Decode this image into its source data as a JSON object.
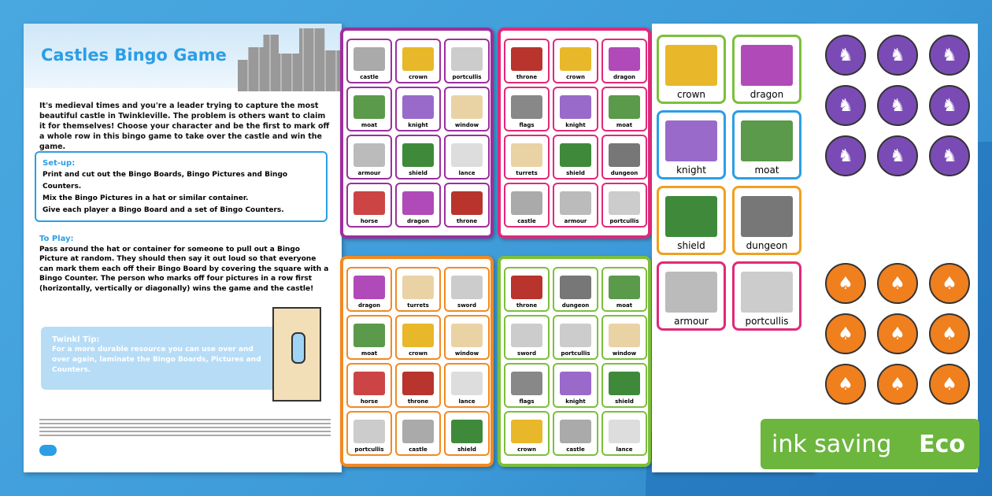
{
  "sheet": {
    "title": "Castles Bingo Game",
    "intro": "It's medieval times and you're a leader trying to capture the most beautiful castle in Twinkleville. The problem is others want to claim it for themselves! Choose your character and be the first to mark off a whole row in this bingo game to take over the castle and win the game.",
    "setup_heading": "Set-up:",
    "setup": [
      "Print and cut out the Bingo Boards, Bingo Pictures and Bingo Counters.",
      "Mix the Bingo Pictures in a hat or similar container.",
      "Give each player a Bingo Board and a set of Bingo Counters."
    ],
    "play_heading": "To Play:",
    "play": "Pass around the hat or container for someone to pull out a Bingo Picture at random. They should then say it out loud so that everyone can mark them each off their Bingo Board by covering the square with a Bingo Counter. The person who marks off four pictures in a row first (horizontally, vertically or diagonally) wins the game and the castle!",
    "tip_heading": "Twinkl Tip:",
    "tip": "For a more durable resource you can use over and over again, laminate the Bingo Boards, Pictures and Counters."
  },
  "boards": [
    {
      "color": "#9b2f9e",
      "cells": [
        "castle",
        "crown",
        "portcullis",
        "moat",
        "knight",
        "window",
        "armour",
        "shield",
        "lance",
        "horse",
        "dragon",
        "throne"
      ]
    },
    {
      "color": "#e0297a",
      "cells": [
        "throne",
        "crown",
        "dragon",
        "flags",
        "knight",
        "moat",
        "turrets",
        "shield",
        "dungeon",
        "castle",
        "armour",
        "portcullis"
      ]
    },
    {
      "color": "#f08a24",
      "cells": [
        "dragon",
        "turrets",
        "sword",
        "moat",
        "crown",
        "window",
        "horse",
        "throne",
        "lance",
        "portcullis",
        "castle",
        "shield"
      ]
    },
    {
      "color": "#7cbf3c",
      "cells": [
        "throne",
        "dungeon",
        "moat",
        "sword",
        "portcullis",
        "window",
        "flags",
        "knight",
        "shield",
        "crown",
        "castle",
        "lance"
      ]
    }
  ],
  "cards": [
    {
      "label": "crown",
      "color": "#7cbf3c"
    },
    {
      "label": "dragon",
      "color": "#7cbf3c"
    },
    {
      "label": "knight",
      "color": "#2b9ee6"
    },
    {
      "label": "moat",
      "color": "#2b9ee6"
    },
    {
      "label": "shield",
      "color": "#f0a020"
    },
    {
      "label": "dungeon",
      "color": "#f0a020"
    },
    {
      "label": "armour",
      "color": "#e0297a"
    },
    {
      "label": "portcullis",
      "color": "#e0297a"
    }
  ],
  "counters": {
    "purple": "#7a4bb5",
    "orange": "#f07f1e"
  },
  "badge": {
    "left": "ink saving",
    "right": "Eco"
  }
}
